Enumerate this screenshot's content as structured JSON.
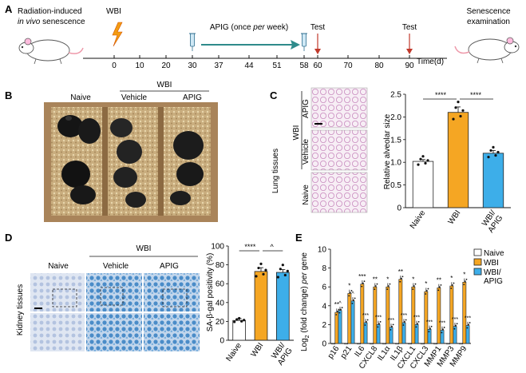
{
  "panels": {
    "a": "A",
    "b": "B",
    "c": "C",
    "d": "D",
    "e": "E"
  },
  "timeline": {
    "title_line1": "Radiation-induced",
    "title_line2_italic": "in vivo",
    "title_line2_rest": " senescence",
    "wbi": "WBI",
    "apig_pre": "APIG (once ",
    "apig_per": "per",
    "apig_post": " week)",
    "test1": "Test",
    "test2": "Test",
    "end_line1": "Senescence",
    "end_line2": "examination",
    "ticks": [
      "0",
      "10",
      "20",
      "30",
      "37",
      "44",
      "51",
      "58",
      "60",
      "70",
      "80",
      "90"
    ],
    "axis_label": "Time(d)"
  },
  "photo": {
    "wbi": "WBI",
    "naive": "Naive",
    "vehicle": "Vehicle",
    "apig": "APIG"
  },
  "lung": {
    "side_label": "Lung tissues",
    "wbi": "WBI",
    "rows": [
      "APIG",
      "Vehicle",
      "Naive"
    ],
    "ylabel": "Relative alveolar size",
    "sig1": "****",
    "sig2": "****"
  },
  "kidney": {
    "side_label": "Kidney tissues",
    "wbi": "WBI",
    "cols": [
      "Naive",
      "Vehicle",
      "APIG"
    ],
    "ylabel": "SA-β-gal positivity (%)",
    "sig1": "****",
    "sig2": "^"
  },
  "gene": {
    "ylabel_pre": "Log",
    "ylabel_sub": "2",
    "ylabel_post": " (fold change) ",
    "ylabel_italic": "per",
    "ylabel_end": " gene",
    "legend": [
      "Naive",
      "WBI",
      "WBI/",
      "APIG"
    ]
  },
  "colors": {
    "naive": "#ffffff",
    "wbi": "#f5a623",
    "apig": "#3daee9",
    "arrow": "#2e8b8b",
    "test": "#c0392b"
  },
  "chart_data": [
    {
      "type": "bar",
      "panel": "C",
      "categories": [
        "Naive",
        "WBI",
        "WBI/\nAPIG"
      ],
      "values": [
        1.02,
        2.1,
        1.2
      ],
      "errors": [
        0.04,
        0.12,
        0.06
      ],
      "ylabel": "Relative alveolar size",
      "ylim": [
        0,
        2.5
      ],
      "yticks": [
        "0",
        "0.5",
        "1.0",
        "1.5",
        "2.0",
        "2.5"
      ]
    },
    {
      "type": "bar",
      "panel": "D",
      "categories": [
        "Naive",
        "WBI",
        "WBI/\nAPIG"
      ],
      "values": [
        21,
        73,
        72
      ],
      "errors": [
        2,
        4,
        3
      ],
      "ylabel": "SA-β-gal positivity (%)",
      "ylim": [
        0,
        100
      ],
      "yticks": [
        "0",
        "20",
        "40",
        "60",
        "80",
        "100"
      ]
    },
    {
      "type": "bar",
      "panel": "E",
      "categories": [
        "p16",
        "p21",
        "IL6",
        "CXCL8",
        "IL1α",
        "IL1β",
        "CXCL1",
        "CXCL3",
        "MMP1",
        "MMP3",
        "MMP9"
      ],
      "series": [
        {
          "name": "Naive",
          "values": [
            0,
            0,
            0,
            0,
            0,
            0,
            0,
            0,
            0,
            0,
            0
          ]
        },
        {
          "name": "WBI",
          "values": [
            3.3,
            5.3,
            6.3,
            6.0,
            6.0,
            6.8,
            6.0,
            5.5,
            5.9,
            6.1,
            6.5
          ]
        },
        {
          "name": "WBI/APIG",
          "values": [
            3.5,
            4.5,
            2.2,
            2.0,
            1.7,
            2.2,
            2.0,
            1.5,
            1.4,
            1.8,
            1.9
          ]
        }
      ],
      "ylim": [
        0,
        10
      ],
      "yticks": [
        "0",
        "2",
        "4",
        "6",
        "8",
        "10"
      ]
    }
  ]
}
